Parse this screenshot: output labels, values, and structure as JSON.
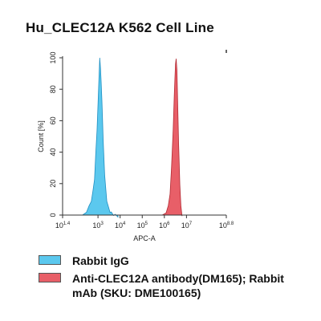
{
  "chart_data": {
    "type": "area",
    "title": "Hu_CLEC12A K562 Cell Line",
    "xlabel": "APC-A",
    "ylabel": "Count [%]",
    "xscale": "log",
    "xlim": [
      25.1,
      631000000
    ],
    "ylim": [
      0,
      100
    ],
    "x_ticks": [
      {
        "base": "10",
        "exp": "1.4",
        "value": 25.1
      },
      {
        "base": "10",
        "exp": "3",
        "value": 1000
      },
      {
        "base": "10",
        "exp": "4",
        "value": 10000
      },
      {
        "base": "10",
        "exp": "5",
        "value": 100000
      },
      {
        "base": "10",
        "exp": "6",
        "value": 1000000
      },
      {
        "base": "10",
        "exp": "7",
        "value": 10000000
      },
      {
        "base": "10",
        "exp": "8.8",
        "value": 631000000
      }
    ],
    "y_ticks": [
      0,
      20,
      40,
      60,
      80,
      100
    ],
    "grid": false,
    "legend_placement": "bottom",
    "series": [
      {
        "name": "Rabbit IgG",
        "color": "#5bc8ee",
        "stroke": "#1f8fc2",
        "x": [
          200,
          300,
          400,
          500,
          600,
          700,
          800,
          900,
          1000,
          1100,
          1200,
          1300,
          1400,
          1500,
          1600,
          1700,
          1800,
          2000,
          2200,
          2500,
          3000,
          3500,
          4000,
          5000,
          6000,
          8000
        ],
        "y": [
          0,
          3,
          6,
          10,
          16,
          24,
          40,
          55,
          70,
          88,
          100,
          94,
          84,
          74,
          62,
          50,
          40,
          27,
          18,
          10,
          5,
          3,
          2,
          1,
          0.5,
          0
        ]
      },
      {
        "name": "Anti-CLEC12A antibody(DM165); Rabbit mAb (SKU: DME100165)",
        "color": "#e85f68",
        "stroke": "#b22a33",
        "x": [
          800000,
          1200000,
          1500000,
          1800000,
          2100000,
          2500000,
          2800000,
          3000000,
          3200000,
          3400000,
          3700000,
          4000000,
          4400000,
          5000000,
          5600000,
          6300000
        ],
        "y": [
          0,
          2,
          6,
          14,
          30,
          55,
          75,
          88,
          96,
          100,
          92,
          72,
          45,
          20,
          6,
          0
        ]
      }
    ]
  }
}
